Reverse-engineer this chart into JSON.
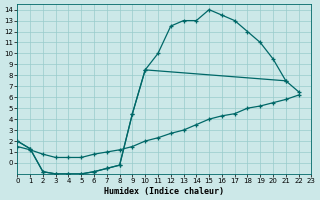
{
  "bg_color": "#cce8e8",
  "line_color": "#006868",
  "grid_color": "#99cccc",
  "xlabel": "Humidex (Indice chaleur)",
  "ylim": [
    -1,
    14.5
  ],
  "xlim": [
    0,
    23
  ],
  "xticks": [
    0,
    1,
    2,
    3,
    4,
    5,
    6,
    7,
    8,
    9,
    10,
    11,
    12,
    13,
    14,
    15,
    16,
    17,
    18,
    19,
    20,
    21,
    22,
    23
  ],
  "yticks": [
    0,
    1,
    2,
    3,
    4,
    5,
    6,
    7,
    8,
    9,
    10,
    11,
    12,
    13,
    14
  ],
  "line1_x": [
    0,
    1,
    2,
    3,
    4,
    5,
    6,
    7,
    8,
    9,
    10,
    11,
    12,
    13,
    14,
    15,
    16,
    17,
    18,
    19,
    20,
    21
  ],
  "line1_y": [
    2.0,
    1.3,
    -0.8,
    -1.0,
    -1.0,
    -1.0,
    -0.8,
    -0.5,
    -0.2,
    4.5,
    8.5,
    10.0,
    12.5,
    13.0,
    13.0,
    14.0,
    13.5,
    13.0,
    12.0,
    11.0,
    9.5,
    7.5
  ],
  "line2_x": [
    0,
    1,
    2,
    3,
    4,
    5,
    6,
    7,
    8,
    9,
    10,
    21,
    22
  ],
  "line2_y": [
    2.0,
    1.3,
    -0.8,
    -1.0,
    -1.0,
    -1.0,
    -0.8,
    -0.5,
    -0.2,
    4.5,
    8.5,
    7.5,
    6.5
  ],
  "line3_x": [
    0,
    1,
    2,
    3,
    4,
    5,
    6,
    7,
    8,
    9,
    10,
    11,
    12,
    13,
    14,
    15,
    16,
    17,
    18,
    19,
    20,
    21,
    22
  ],
  "line3_y": [
    1.5,
    1.2,
    0.8,
    0.5,
    0.5,
    0.5,
    0.8,
    1.0,
    1.2,
    1.5,
    2.0,
    2.3,
    2.7,
    3.0,
    3.5,
    4.0,
    4.3,
    4.5,
    5.0,
    5.2,
    5.5,
    5.8,
    6.2
  ]
}
